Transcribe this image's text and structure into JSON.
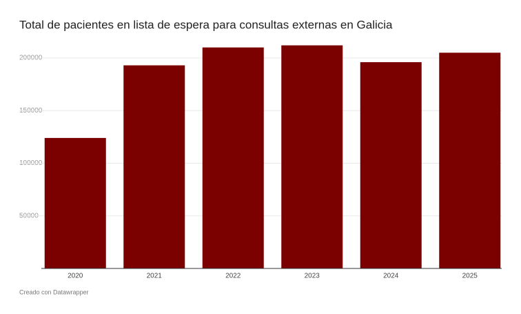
{
  "chart_data": {
    "type": "bar",
    "title": "Total de pacientes en lista de espera para consultas externas en Galicia",
    "categories": [
      "2020",
      "2021",
      "2022",
      "2023",
      "2024",
      "2025"
    ],
    "values": [
      124000,
      193000,
      210000,
      212000,
      196000,
      205000
    ],
    "color": "#7b0000",
    "ylim": [
      0,
      220000
    ],
    "yticks": [
      50000,
      100000,
      150000,
      200000
    ],
    "grid": true,
    "footer": "Creado con Datawrapper"
  }
}
